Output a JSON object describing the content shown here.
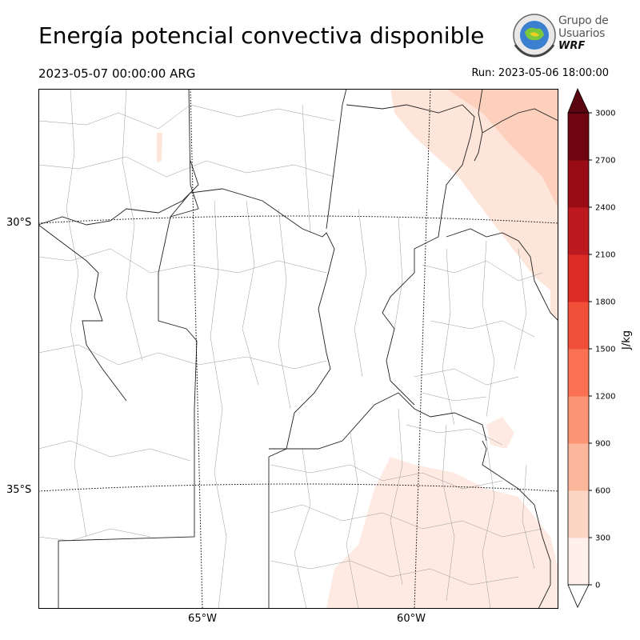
{
  "title": "Energía potencial convectiva disponible",
  "valid_time": "2023-05-07 00:00:00 ARG",
  "run_time": "Run: 2023-05-06 18:00:00",
  "logo": {
    "line1": "Grupo de",
    "line2": "Usuarios",
    "line3": "WRF"
  },
  "map": {
    "lat_labels": [
      "30°S",
      "35°S"
    ],
    "lon_labels": [
      "65°W",
      "60°W"
    ]
  },
  "colorbar": {
    "unit": "J/kg",
    "ticks": [
      "0",
      "300",
      "600",
      "900",
      "1200",
      "1500",
      "1800",
      "2100",
      "2400",
      "2700",
      "3000"
    ],
    "colors": [
      "#fff0eb",
      "#fdd5c4",
      "#fcb69b",
      "#fc9474",
      "#fb7252",
      "#f14f37",
      "#dc2a25",
      "#bd1a1f",
      "#9a0c15",
      "#6f0510"
    ],
    "extend_color": "#5a0510"
  }
}
